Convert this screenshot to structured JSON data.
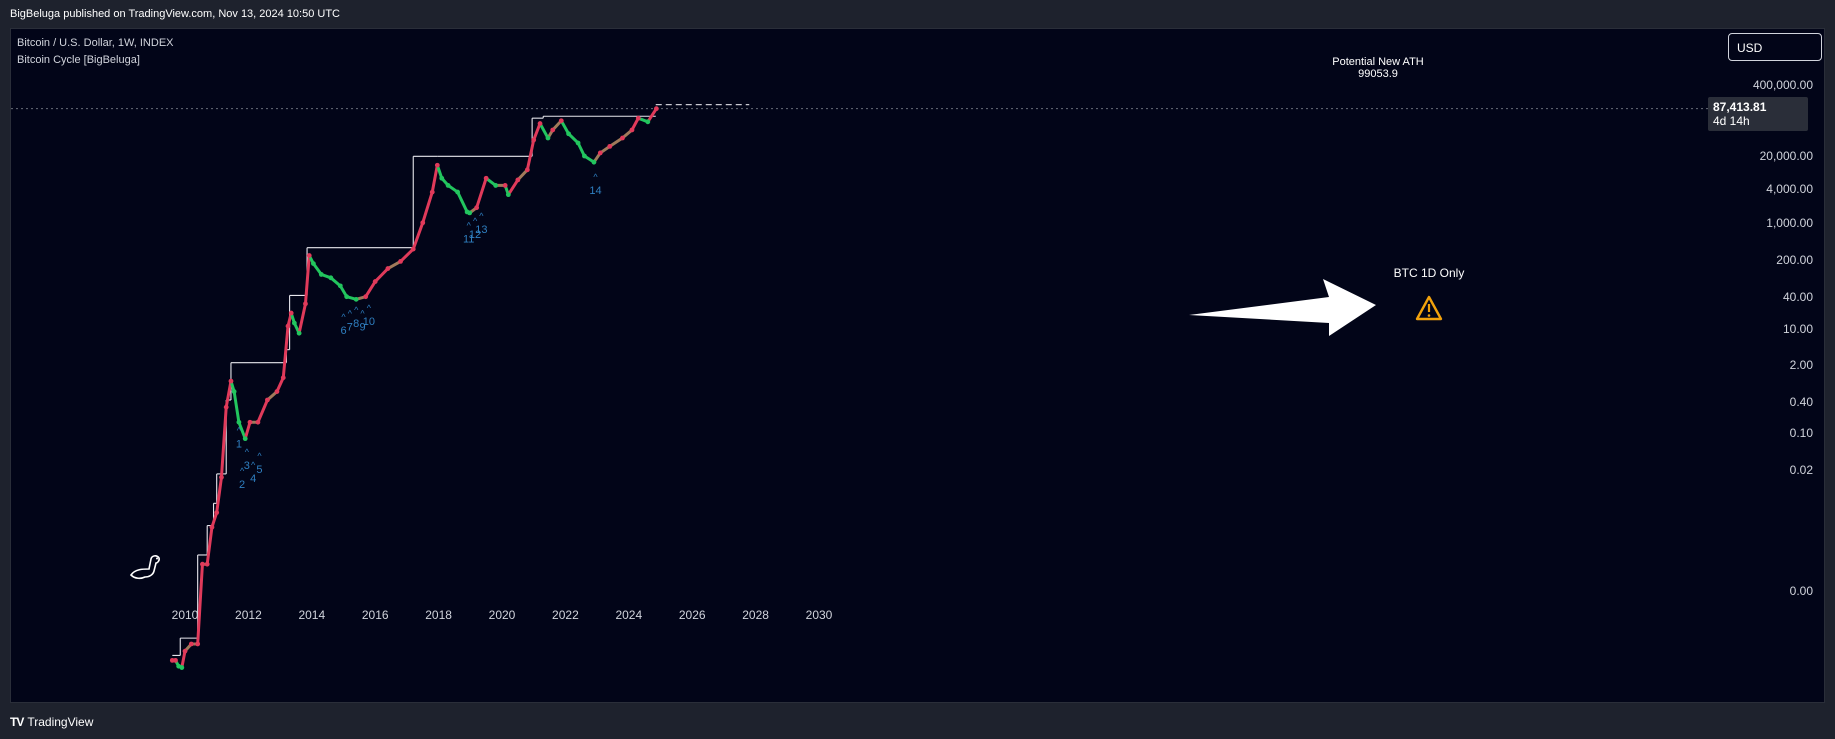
{
  "header": {
    "published": "BigBeluga published on TradingView.com, Nov 13, 2024 10:50 UTC"
  },
  "legend": {
    "symbol": "Bitcoin / U.S. Dollar, 1W, INDEX",
    "indicator": "Bitcoin Cycle [BigBeluga]"
  },
  "currency": "USD",
  "price_label": {
    "value": "87,413.81",
    "countdown": "4d 14h"
  },
  "annotations": {
    "ath_label": "Potential New ATH",
    "ath_value": "99053.9",
    "note": "BTC 1D Only",
    "warning_icon": "warning-triangle-icon",
    "arrow_icon": "arrow-right-icon"
  },
  "footer": {
    "brand": "TradingView",
    "logo_text": "TV"
  },
  "colors": {
    "background": "#020518",
    "bull": "#22c55e",
    "bear": "#e03a5a",
    "transition": "#a07a5a",
    "cycle_marker": "#2f7fc0",
    "ath_line": "#e8e8ee",
    "warning": "#f2a20c"
  },
  "chart_data": {
    "type": "line",
    "title": "Bitcoin / U.S. Dollar, 1W, INDEX",
    "scale": "log",
    "xlim": [
      2009.0,
      2030.8
    ],
    "x_ticks": [
      "2010",
      "2012",
      "2014",
      "2016",
      "2018",
      "2020",
      "2022",
      "2024",
      "2026",
      "2028",
      "2030"
    ],
    "y_ticks": [
      "400,000.00",
      "20,000.00",
      "4,000.00",
      "1,000.00",
      "200.00",
      "40.00",
      "10.00",
      "2.00",
      "0.40",
      "0.10",
      "0.02",
      "0.00"
    ],
    "series": [
      {
        "name": "Bitcoin / U.S. Dollar",
        "x": [
          2009.6,
          2009.7,
          2009.8,
          2009.9,
          2010.0,
          2010.2,
          2010.4,
          2010.55,
          2010.7,
          2010.85,
          2011.0,
          2011.15,
          2011.3,
          2011.45,
          2011.55,
          2011.7,
          2011.9,
          2012.05,
          2012.3,
          2012.6,
          2012.9,
          2013.1,
          2013.25,
          2013.35,
          2013.45,
          2013.6,
          2013.8,
          2013.92,
          2014.05,
          2014.3,
          2014.6,
          2014.9,
          2015.1,
          2015.4,
          2015.7,
          2016.0,
          2016.4,
          2016.8,
          2017.2,
          2017.5,
          2017.8,
          2017.96,
          2018.1,
          2018.3,
          2018.6,
          2018.9,
          2018.98,
          2019.2,
          2019.5,
          2019.8,
          2020.1,
          2020.2,
          2020.5,
          2020.8,
          2021.0,
          2021.2,
          2021.45,
          2021.6,
          2021.87,
          2022.1,
          2022.4,
          2022.6,
          2022.9,
          2023.1,
          2023.4,
          2023.8,
          2024.1,
          2024.3,
          2024.6,
          2024.87
        ],
        "y": [
          0.003,
          0.003,
          0.0025,
          0.0024,
          0.004,
          0.005,
          0.005,
          0.06,
          0.06,
          0.19,
          0.3,
          0.9,
          8.0,
          18.0,
          13.0,
          5.0,
          3.0,
          5.0,
          5.0,
          10.0,
          13.0,
          20.0,
          100.0,
          150.0,
          110.0,
          80.0,
          200.0,
          900.0,
          700.0,
          500.0,
          450.0,
          350.0,
          250.0,
          230.0,
          250.0,
          400.0,
          600.0,
          750.0,
          1100.0,
          2500.0,
          6500.0,
          15000.0,
          10000.0,
          8000.0,
          6500.0,
          3500.0,
          3400.0,
          4000.0,
          10000.0,
          8000.0,
          8000.0,
          6000.0,
          9500.0,
          13000.0,
          33000.0,
          55000.0,
          35000.0,
          45000.0,
          60000.0,
          40000.0,
          30000.0,
          20000.0,
          16500.0,
          22000.0,
          27000.0,
          35000.0,
          45000.0,
          65000.0,
          58000.0,
          87413.81
        ]
      }
    ],
    "ath_steps": [
      {
        "x": [
          2009.6,
          2009.85
        ],
        "y": 0.0035
      },
      {
        "x": [
          2009.85,
          2010.4
        ],
        "y": 0.006
      },
      {
        "x": [
          2010.4,
          2010.7
        ],
        "y": 0.08
      },
      {
        "x": [
          2010.7,
          2010.9
        ],
        "y": 0.2
      },
      {
        "x": [
          2010.9,
          2011.0
        ],
        "y": 0.4
      },
      {
        "x": [
          2011.0,
          2011.3
        ],
        "y": 1.0
      },
      {
        "x": [
          2011.3,
          2011.45
        ],
        "y": 10.0
      },
      {
        "x": [
          2011.45,
          2013.2
        ],
        "y": 32.0
      },
      {
        "x": [
          2013.2,
          2013.3
        ],
        "y": 48.0
      },
      {
        "x": [
          2013.3,
          2013.85
        ],
        "y": 260.0
      },
      {
        "x": [
          2013.85,
          2017.2
        ],
        "y": 1150.0
      },
      {
        "x": [
          2017.2,
          2017.96
        ],
        "y": 19800.0
      },
      {
        "x": [
          2017.96,
          2020.95
        ],
        "y": 19800.0
      },
      {
        "x": [
          2020.95,
          2021.3
        ],
        "y": 65000.0
      },
      {
        "x": [
          2021.3,
          2024.85
        ],
        "y": 69000.0
      },
      {
        "x": [
          2024.85,
          2027.8
        ],
        "y": 99053.9
      }
    ],
    "cycle_markers": [
      {
        "label": "1",
        "x": 2011.7,
        "y": 3.5
      },
      {
        "label": "2",
        "x": 2011.8,
        "y": 1.0
      },
      {
        "label": "3",
        "x": 2011.95,
        "y": 1.8
      },
      {
        "label": "4",
        "x": 2012.15,
        "y": 1.2
      },
      {
        "label": "5",
        "x": 2012.35,
        "y": 1.6
      },
      {
        "label": "6",
        "x": 2015.0,
        "y": 120.0
      },
      {
        "label": "7",
        "x": 2015.2,
        "y": 135.0
      },
      {
        "label": "8",
        "x": 2015.4,
        "y": 150.0
      },
      {
        "label": "9",
        "x": 2015.6,
        "y": 135.0
      },
      {
        "label": "10",
        "x": 2015.8,
        "y": 160.0
      },
      {
        "label": "11",
        "x": 2018.95,
        "y": 2100.0
      },
      {
        "label": "12",
        "x": 2019.15,
        "y": 2400.0
      },
      {
        "label": "13",
        "x": 2019.35,
        "y": 2800.0
      },
      {
        "label": "14",
        "x": 2022.95,
        "y": 9500.0
      }
    ]
  }
}
